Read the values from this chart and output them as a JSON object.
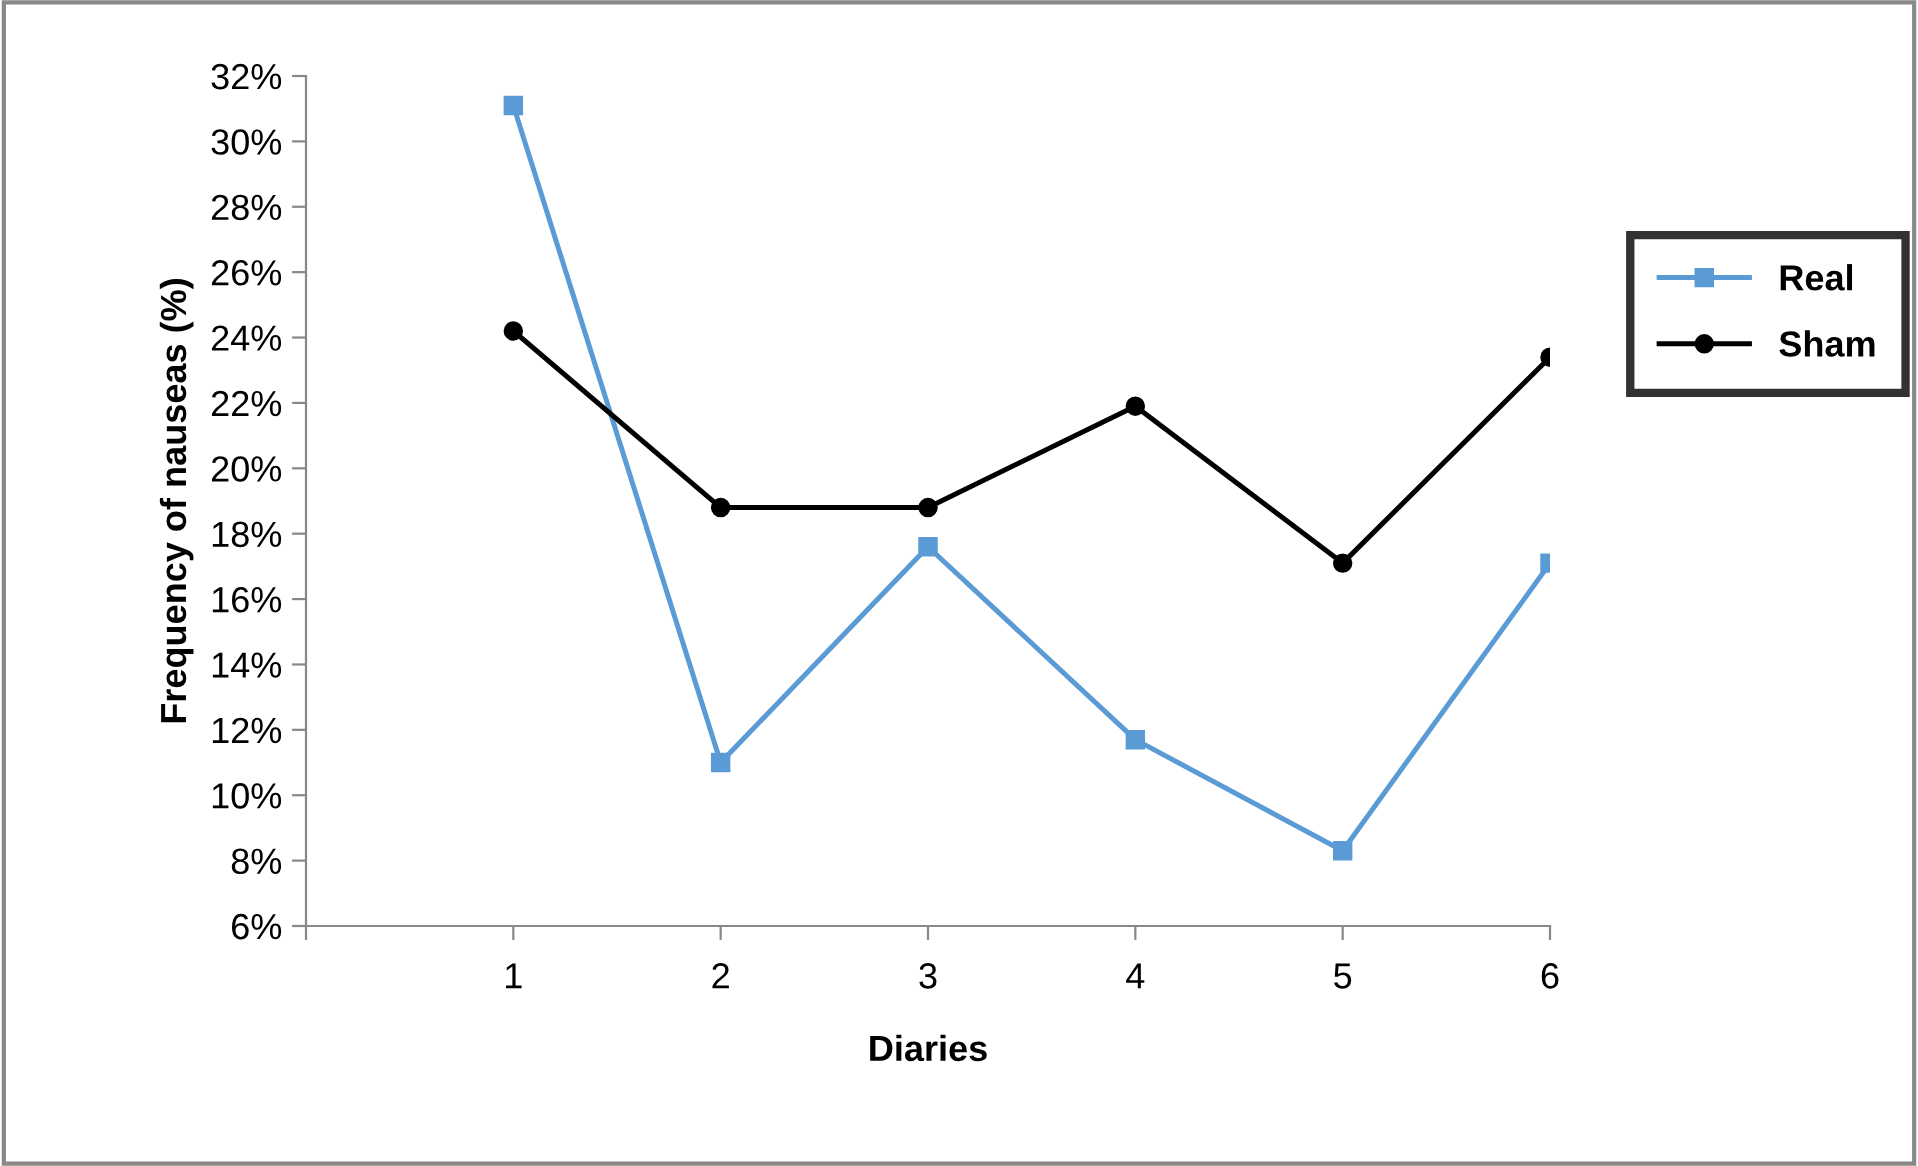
{
  "chart_data": {
    "type": "line",
    "xlabel": "Diaries",
    "ylabel": "Frequency of nauseas (%)",
    "x": [
      1,
      2,
      3,
      4,
      5,
      6
    ],
    "series": [
      {
        "name": "Real",
        "color": "#5b9bd5",
        "marker": "square",
        "values": [
          31.1,
          11.0,
          17.6,
          11.7,
          8.3,
          17.1
        ]
      },
      {
        "name": "Sham",
        "color": "#000000",
        "marker": "circle",
        "values": [
          24.2,
          18.8,
          18.8,
          21.9,
          17.1,
          23.4
        ]
      }
    ],
    "xlim": [
      0,
      6
    ],
    "xticks": [
      {
        "value": 0,
        "label": null
      },
      1,
      2,
      3,
      4,
      5,
      6
    ],
    "ylim": [
      6,
      32
    ],
    "yticks": [
      {
        "value": 6,
        "label": "6%"
      },
      {
        "value": 8,
        "label": "8%"
      },
      {
        "value": 10,
        "label": "10%"
      },
      {
        "value": 12,
        "label": "12%"
      },
      {
        "value": 14,
        "label": "14%"
      },
      {
        "value": 16,
        "label": "16%"
      },
      {
        "value": 18,
        "label": "18%"
      },
      {
        "value": 20,
        "label": "20%"
      },
      {
        "value": 22,
        "label": "22%"
      },
      {
        "value": 24,
        "label": "24%"
      },
      {
        "value": 26,
        "label": "26%"
      },
      {
        "value": 28,
        "label": "28%"
      },
      {
        "value": 30,
        "label": "30%"
      },
      {
        "value": 32,
        "label": "32%"
      }
    ],
    "grid": false,
    "legend": "right",
    "line_style": "solid"
  }
}
